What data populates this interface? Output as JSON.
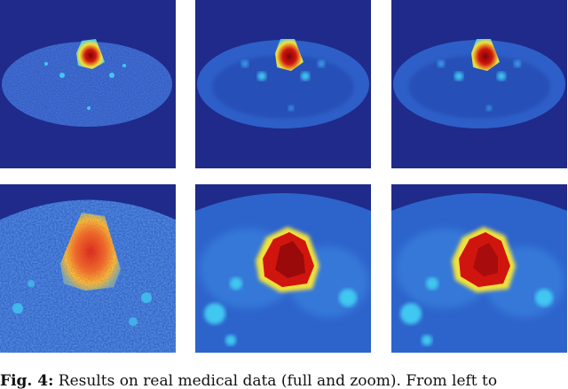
{
  "figure": {
    "caption_label": "Fig. 4:",
    "caption_text": " Results on real medical data (full and zoom). From left to"
  },
  "colors": {
    "background": "#1f2a8a",
    "body": "#2345b8",
    "tissue": "#2f6fd6",
    "cyan": "#40c8f0",
    "yellow": "#f2e23a",
    "red": "#d0150f",
    "dark_red": "#7a0408"
  },
  "panels": [
    {
      "id": "full-noisy",
      "icon": "pet-scan-image"
    },
    {
      "id": "full-smooth-a",
      "icon": "pet-scan-image"
    },
    {
      "id": "full-smooth-b",
      "icon": "pet-scan-image"
    },
    {
      "id": "zoom-noisy",
      "icon": "pet-scan-image"
    },
    {
      "id": "zoom-smooth-a",
      "icon": "pet-scan-image"
    },
    {
      "id": "zoom-smooth-b",
      "icon": "pet-scan-image"
    }
  ]
}
